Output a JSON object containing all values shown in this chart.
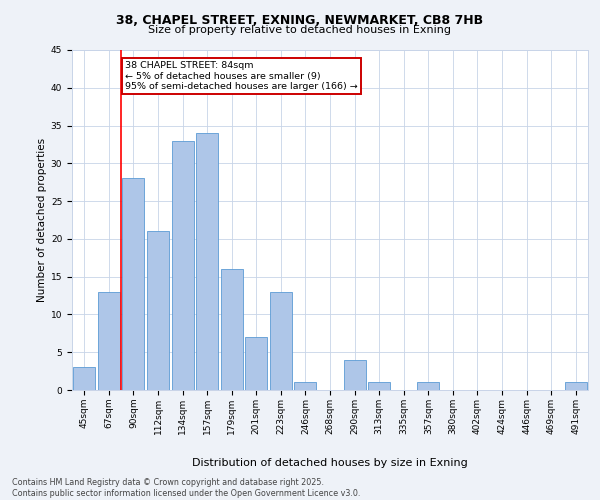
{
  "title_line1": "38, CHAPEL STREET, EXNING, NEWMARKET, CB8 7HB",
  "title_line2": "Size of property relative to detached houses in Exning",
  "xlabel": "Distribution of detached houses by size in Exning",
  "ylabel": "Number of detached properties",
  "categories": [
    "45sqm",
    "67sqm",
    "90sqm",
    "112sqm",
    "134sqm",
    "157sqm",
    "179sqm",
    "201sqm",
    "223sqm",
    "246sqm",
    "268sqm",
    "290sqm",
    "313sqm",
    "335sqm",
    "357sqm",
    "380sqm",
    "402sqm",
    "424sqm",
    "446sqm",
    "469sqm",
    "491sqm"
  ],
  "values": [
    3,
    13,
    28,
    21,
    33,
    34,
    16,
    7,
    13,
    1,
    0,
    4,
    1,
    0,
    1,
    0,
    0,
    0,
    0,
    0,
    1
  ],
  "bar_color": "#aec6e8",
  "bar_edge_color": "#5b9bd5",
  "red_line_x": 1.5,
  "annotation_text": "38 CHAPEL STREET: 84sqm\n← 5% of detached houses are smaller (9)\n95% of semi-detached houses are larger (166) →",
  "annotation_box_color": "#ffffff",
  "annotation_box_edge_color": "#cc0000",
  "ylim": [
    0,
    45
  ],
  "yticks": [
    0,
    5,
    10,
    15,
    20,
    25,
    30,
    35,
    40,
    45
  ],
  "footer_text": "Contains HM Land Registry data © Crown copyright and database right 2025.\nContains public sector information licensed under the Open Government Licence v3.0.",
  "bg_color": "#eef2f8",
  "plot_bg_color": "#ffffff",
  "grid_color": "#c8d4e8",
  "title_fontsize1": 9,
  "title_fontsize2": 8,
  "ylabel_fontsize": 7.5,
  "xlabel_fontsize": 8,
  "tick_fontsize": 6.5,
  "annotation_fontsize": 6.8,
  "footer_fontsize": 5.8
}
